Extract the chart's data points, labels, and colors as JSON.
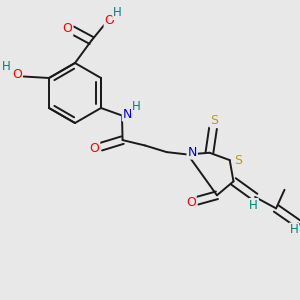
{
  "bg_color": "#e8e8e8",
  "bond_color": "#1a1a1a",
  "bond_lw": 1.4,
  "dbo": 0.012,
  "atom_colors": {
    "O": "#ff0000",
    "N": "#0000cd",
    "S": "#b8a000",
    "H": "#008080",
    "C": "#1a1a1a"
  }
}
